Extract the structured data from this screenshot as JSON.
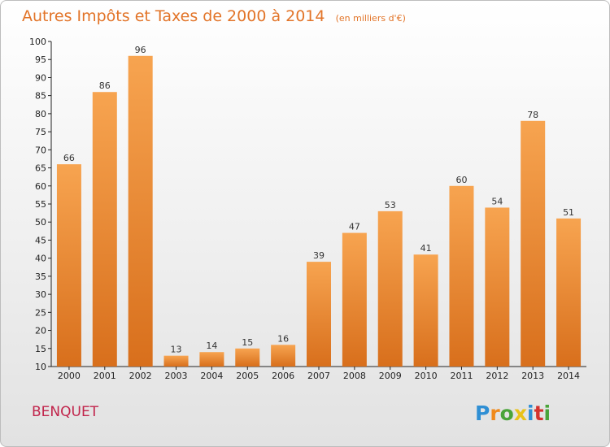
{
  "chart_data": {
    "type": "bar",
    "title": "Autres Impôts et Taxes de 2000 à 2014",
    "unit": "(en milliers d'€)",
    "categories": [
      "2000",
      "2001",
      "2002",
      "2003",
      "2004",
      "2005",
      "2006",
      "2007",
      "2008",
      "2009",
      "2010",
      "2011",
      "2012",
      "2013",
      "2014"
    ],
    "values": [
      66,
      86,
      96,
      13,
      14,
      15,
      16,
      39,
      47,
      53,
      41,
      60,
      54,
      78,
      51
    ],
    "ylim": [
      10,
      100
    ],
    "yticks": [
      10,
      15,
      20,
      25,
      30,
      35,
      40,
      45,
      50,
      55,
      60,
      65,
      70,
      75,
      80,
      85,
      90,
      95,
      100
    ],
    "grid": false,
    "legend": "none",
    "bar_color_top": "#f7a450",
    "bar_color_bottom": "#d86f1c"
  },
  "footer": {
    "commune": "BENQUET",
    "brand_letters": [
      {
        "char": "P",
        "color": "#2f8fd4"
      },
      {
        "char": "r",
        "color": "#f08a1c"
      },
      {
        "char": "o",
        "color": "#4aa43a"
      },
      {
        "char": "x",
        "color": "#e8c21a"
      },
      {
        "char": "i",
        "color": "#2f8fd4"
      },
      {
        "char": "t",
        "color": "#d4322e"
      },
      {
        "char": "i",
        "color": "#4aa43a"
      }
    ]
  }
}
